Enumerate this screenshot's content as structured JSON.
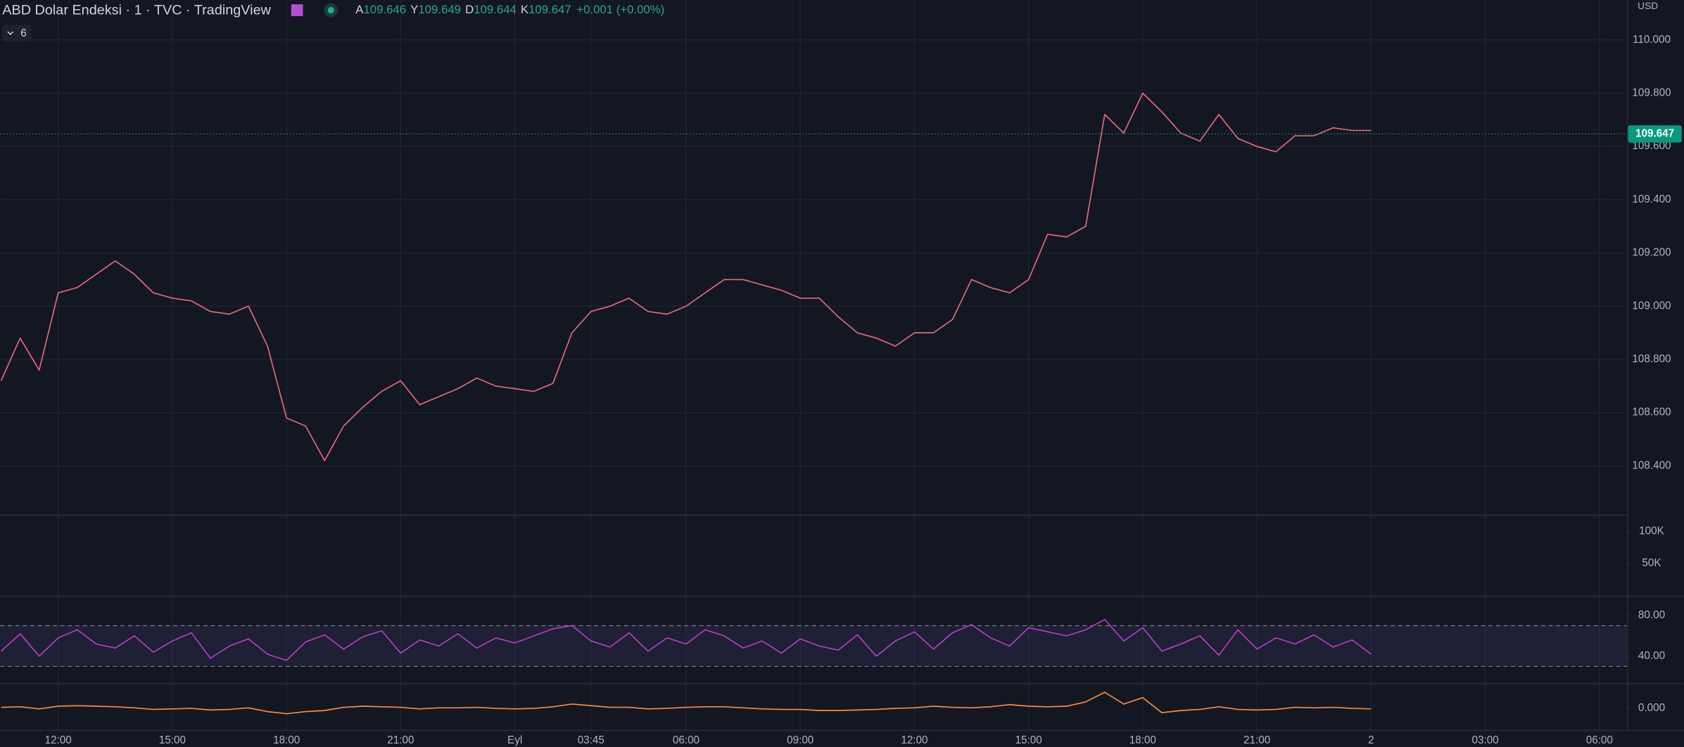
{
  "header": {
    "title": "ABD Dolar Endeksi · 1 · TVC · TradingView",
    "legend_count": "6",
    "currency": "USD",
    "ohlc": [
      {
        "key": "A",
        "value": "109.646"
      },
      {
        "key": "Y",
        "value": "109.649"
      },
      {
        "key": "D",
        "value": "109.644"
      },
      {
        "key": "K",
        "value": "109.647"
      }
    ],
    "change": "+0.001 (+0.00%)"
  },
  "chart_data": [
    {
      "type": "line",
      "color": "#e8667a",
      "categories": [
        null,
        null,
        null,
        "12:00",
        null,
        null,
        null,
        null,
        null,
        "15:00",
        null,
        null,
        null,
        null,
        null,
        "18:00",
        null,
        null,
        null,
        null,
        null,
        "21:00",
        null,
        null,
        null,
        null,
        null,
        "Eyl",
        null,
        null,
        null,
        "03:45",
        null,
        null,
        null,
        null,
        "06:00",
        null,
        null,
        null,
        null,
        null,
        "09:00",
        null,
        null,
        null,
        null,
        null,
        "12:00",
        null,
        null,
        null,
        null,
        null,
        "15:00",
        null,
        null,
        null,
        null,
        null,
        "18:00",
        null,
        null,
        null,
        null,
        null,
        "21:00",
        null,
        null,
        null,
        null,
        null,
        "2",
        null,
        null,
        null,
        null,
        null,
        "03:00",
        null,
        null,
        null,
        null,
        null,
        "06:00"
      ],
      "values": [
        108.72,
        108.88,
        108.76,
        109.05,
        109.07,
        109.12,
        109.17,
        109.12,
        109.05,
        109.03,
        109.02,
        108.98,
        108.97,
        109.0,
        108.85,
        108.58,
        108.55,
        108.42,
        108.55,
        108.62,
        108.68,
        108.72,
        108.63,
        108.66,
        108.69,
        108.73,
        108.7,
        108.69,
        108.68,
        108.71,
        108.9,
        108.98,
        109.0,
        109.03,
        108.98,
        108.97,
        109.0,
        109.05,
        109.1,
        109.1,
        109.08,
        109.06,
        109.03,
        109.03,
        108.96,
        108.9,
        108.88,
        108.85,
        108.9,
        108.9,
        108.95,
        109.1,
        109.07,
        109.05,
        109.1,
        109.27,
        109.26,
        109.3,
        109.72,
        109.65,
        109.8,
        109.73,
        109.65,
        109.62,
        109.72,
        109.63,
        109.6,
        109.58,
        109.64,
        109.64,
        109.67,
        109.66,
        109.66,
        null,
        null,
        null,
        null,
        null,
        null,
        null,
        null,
        null,
        null,
        null,
        null
      ],
      "last_price": 109.647,
      "last_price_color": "#089981",
      "ylim": [
        108.215,
        110.15
      ],
      "yticks": [
        {
          "value": 108.4,
          "label": "108.400"
        },
        {
          "value": 108.6,
          "label": "108.600"
        },
        {
          "value": 108.8,
          "label": "108.800"
        },
        {
          "value": 109.0,
          "label": "109.000"
        },
        {
          "value": 109.2,
          "label": "109.200"
        },
        {
          "value": 109.4,
          "label": "109.400"
        },
        {
          "value": 109.6,
          "label": "109.600"
        },
        {
          "value": 109.8,
          "label": "109.800"
        },
        {
          "value": 110.0,
          "label": "110.000"
        }
      ],
      "grid": true
    },
    {
      "type": "bar",
      "ylim": [
        0,
        125000
      ],
      "yticks": [
        {
          "value": 50000,
          "label": "50K"
        },
        {
          "value": 100000,
          "label": "100K"
        }
      ]
    },
    {
      "type": "line",
      "color": "#b43fbd",
      "bands": [
        30,
        70
      ],
      "values": [
        45,
        62,
        40,
        58,
        66,
        52,
        48,
        60,
        44,
        55,
        63,
        38,
        50,
        57,
        42,
        36,
        54,
        61,
        47,
        59,
        65,
        43,
        56,
        50,
        62,
        48,
        58,
        53,
        60,
        67,
        70,
        55,
        49,
        63,
        45,
        58,
        52,
        66,
        60,
        48,
        55,
        43,
        57,
        50,
        46,
        61,
        40,
        55,
        64,
        47,
        63,
        71,
        58,
        50,
        68,
        64,
        60,
        66,
        76,
        55,
        68,
        45,
        52,
        60,
        41,
        66,
        47,
        58,
        52,
        61,
        49,
        56,
        42,
        null,
        null,
        null,
        null,
        null,
        null,
        null,
        null,
        null,
        null,
        null,
        null
      ],
      "ylim": [
        14.1,
        98.4
      ],
      "yticks": [
        {
          "value": 40,
          "label": "40.00"
        },
        {
          "value": 80,
          "label": "80.00"
        }
      ]
    },
    {
      "type": "line",
      "color": "#ff8a3d",
      "values": [
        0.002,
        0.003,
        -0.001,
        0.004,
        0.005,
        0.004,
        0.003,
        0.001,
        -0.002,
        -0.001,
        0,
        -0.003,
        -0.002,
        0.001,
        -0.006,
        -0.01,
        -0.006,
        -0.004,
        0.002,
        0.004,
        0.003,
        0.002,
        -0.001,
        0.001,
        0.001,
        0.002,
        0,
        -0.001,
        0,
        0.003,
        0.008,
        0.005,
        0.002,
        0.002,
        -0.001,
        0,
        0.002,
        0.003,
        0.003,
        0.001,
        -0.001,
        -0.002,
        -0.002,
        -0.004,
        -0.004,
        -0.003,
        -0.002,
        0,
        0.001,
        0.004,
        0.002,
        0.001,
        0.003,
        0.007,
        0.004,
        0.003,
        0.004,
        0.012,
        0.03,
        0.008,
        0.02,
        -0.008,
        -0.004,
        -0.002,
        0.003,
        -0.002,
        -0.003,
        -0.002,
        0.002,
        0.001,
        0.002,
        0,
        -0.001,
        null,
        null,
        null,
        null,
        null,
        null,
        null,
        null,
        null,
        null,
        null,
        null
      ],
      "ylim": [
        -0.04,
        0.04
      ],
      "yticks": [
        {
          "value": 0,
          "label": "0.000"
        }
      ]
    }
  ]
}
